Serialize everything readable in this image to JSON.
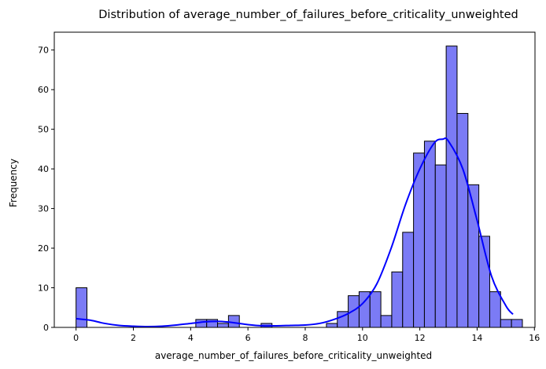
{
  "chart_data": {
    "type": "bar",
    "title": "Distribution of average_number_of_failures_before_criticality_unweighted",
    "xlabel": "average_number_of_failures_before_criticality_unweighted",
    "ylabel": "Frequency",
    "xlim": [
      -0.76,
      16.02
    ],
    "ylim": [
      0,
      74.5
    ],
    "xticks": [
      0,
      2,
      4,
      6,
      8,
      10,
      12,
      14,
      16
    ],
    "yticks": [
      0,
      10,
      20,
      30,
      40,
      50,
      60,
      70
    ],
    "bins": {
      "start": 0,
      "width": 0.38,
      "counts": [
        10,
        0,
        0,
        0,
        0,
        0,
        0,
        0,
        0,
        0,
        0,
        2,
        2,
        1,
        3,
        0,
        0,
        1,
        0,
        0,
        0,
        0,
        0,
        1,
        4,
        8,
        9,
        9,
        3,
        14,
        24,
        44,
        47,
        41,
        71,
        54,
        36,
        23,
        9,
        2,
        2
      ]
    },
    "kde": {
      "x": [
        0,
        0.5,
        1,
        1.5,
        2,
        2.5,
        3,
        3.5,
        4,
        4.5,
        5,
        5.5,
        6,
        6.5,
        7,
        7.5,
        8,
        8.5,
        9,
        9.5,
        10,
        10.5,
        11,
        11.5,
        12,
        12.5,
        12.8,
        13,
        13.5,
        14,
        14.5,
        15,
        15.25
      ],
      "y": [
        2.2,
        1.8,
        1.0,
        0.5,
        0.3,
        0.2,
        0.3,
        0.6,
        1.0,
        1.4,
        1.5,
        1.2,
        0.7,
        0.4,
        0.4,
        0.5,
        0.6,
        1.0,
        2.0,
        3.5,
        6.0,
        11.0,
        20.0,
        31.0,
        40.0,
        46.5,
        47.5,
        47.0,
        40.0,
        27.0,
        13.0,
        5.5,
        3.3
      ]
    },
    "bar_color": "#7b7bf5",
    "bar_edge_color": "#000000",
    "kde_color": "#0000ff",
    "grid": false,
    "legend": "none"
  }
}
